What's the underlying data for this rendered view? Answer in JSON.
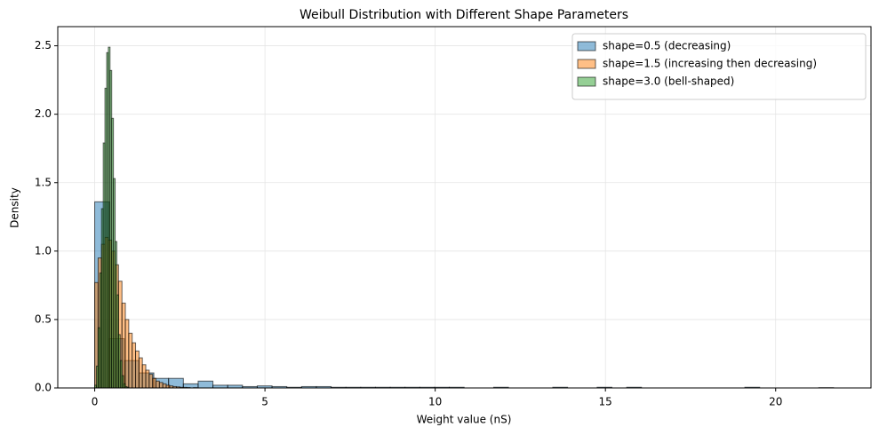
{
  "chart_data": {
    "type": "histogram",
    "title": "Weibull Distribution with Different Shape Parameters",
    "xlabel": "Weight value (nS)",
    "ylabel": "Density",
    "xlim": [
      -1.085,
      22.8
    ],
    "ylim": [
      0,
      2.64
    ],
    "xticks": [
      0,
      5,
      10,
      15,
      20
    ],
    "yticks": [
      {
        "value": 0,
        "label": "0.0"
      },
      0.5,
      {
        "value": 1,
        "label": "1.0"
      },
      1.5,
      {
        "value": 2,
        "label": "2.0"
      },
      2.5
    ],
    "grid": true,
    "legend": "upper right",
    "opacity": 0.5,
    "edgecolor": "#000000",
    "series": [
      {
        "name": "shape=0.5 (decreasing)",
        "color": "#1f77b4",
        "bins": [
          0,
          0.434,
          0.868,
          1.302,
          1.736,
          2.17,
          2.604,
          3.038,
          3.472,
          3.906,
          4.34,
          4.774,
          5.208,
          5.642,
          6.076,
          6.51,
          6.944,
          7.378,
          7.812,
          8.246,
          8.68,
          9.114,
          9.548,
          9.982,
          10.416,
          10.85,
          11.284,
          11.718,
          12.152,
          12.586,
          13.02,
          13.454,
          13.888,
          14.322,
          14.756,
          15.19,
          15.624,
          16.058,
          16.492,
          16.926,
          17.36,
          17.794,
          18.228,
          18.662,
          19.096,
          19.53,
          19.964,
          20.398,
          20.832,
          21.266,
          21.7
        ],
        "values": [
          1.36,
          0.36,
          0.2,
          0.11,
          0.07,
          0.07,
          0.03,
          0.05,
          0.02,
          0.02,
          0.01,
          0.015,
          0.01,
          0.005,
          0.01,
          0.01,
          0.005,
          0.005,
          0.005,
          0.005,
          0.005,
          0.005,
          0.005,
          0.005,
          0.005,
          0,
          0,
          0.005,
          0,
          0,
          0,
          0.005,
          0,
          0,
          0.005,
          0,
          0.005,
          0,
          0,
          0,
          0,
          0,
          0,
          0,
          0.005,
          0,
          0,
          0,
          0,
          0.002
        ]
      },
      {
        "name": "shape=1.5 (increasing then decreasing)",
        "color": "#ff7f0e",
        "bins": [
          0,
          0.1,
          0.2,
          0.3,
          0.4,
          0.5,
          0.6,
          0.7,
          0.8,
          0.9,
          1.0,
          1.1,
          1.2,
          1.3,
          1.4,
          1.5,
          1.6,
          1.7,
          1.8,
          1.9,
          2.0,
          2.1,
          2.2,
          2.3,
          2.4,
          2.5,
          2.6,
          2.7,
          2.8,
          2.9,
          3.0
        ],
        "values": [
          0.77,
          0.95,
          1.05,
          1.1,
          1.08,
          1.0,
          0.9,
          0.78,
          0.62,
          0.5,
          0.4,
          0.33,
          0.27,
          0.22,
          0.17,
          0.13,
          0.1,
          0.07,
          0.05,
          0.04,
          0.03,
          0.02,
          0.015,
          0.01,
          0.008,
          0.005,
          0.004,
          0.003,
          0,
          0.002
        ]
      },
      {
        "name": "shape=3.0 (bell-shaped)",
        "color": "#2ca02c",
        "bins": [
          0,
          0.05,
          0.1,
          0.15,
          0.2,
          0.25,
          0.3,
          0.35,
          0.4,
          0.45,
          0.5,
          0.55,
          0.6,
          0.65,
          0.7,
          0.75,
          0.8,
          0.85,
          0.9,
          0.95,
          1.0
        ],
        "values": [
          0.02,
          0.16,
          0.44,
          0.84,
          1.31,
          1.79,
          2.19,
          2.45,
          2.49,
          2.32,
          1.97,
          1.53,
          1.07,
          0.68,
          0.39,
          0.2,
          0.09,
          0.03,
          0.01,
          0.005
        ]
      }
    ]
  }
}
